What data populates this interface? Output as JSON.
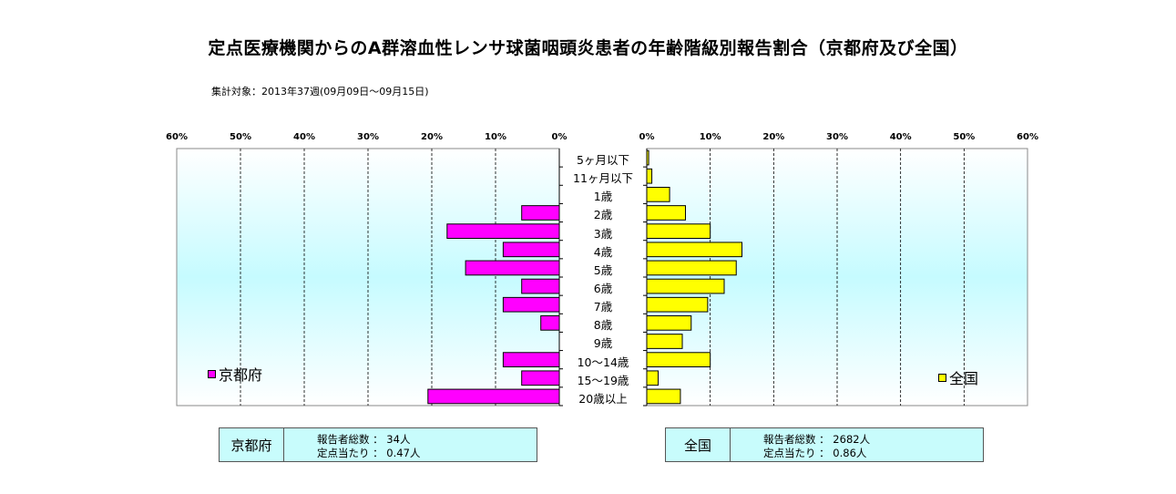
{
  "title": "定点医療機関からのA群溶血性レンサ球菌咽頭炎患者の年齢階級別報告割合（京都府及び全国）",
  "subtitle": "集計対象：2013年37週(09月09日〜09月15日)",
  "colors": {
    "kyoto": "#ff00ff",
    "national": "#ffff00",
    "grad_edge": "#ffffff",
    "grad_mid": "#c6fbff"
  },
  "chart_data": {
    "type": "bar",
    "orientation": "horizontal",
    "categories": [
      "5ヶ月以下",
      "11ヶ月以下",
      "1歳",
      "2歳",
      "3歳",
      "4歳",
      "5歳",
      "6歳",
      "7歳",
      "8歳",
      "9歳",
      "10〜14歳",
      "15〜19歳",
      "20歳以上"
    ],
    "xlim": [
      0,
      60
    ],
    "ticks": [
      "60%",
      "50%",
      "40%",
      "30%",
      "20%",
      "10%",
      "0%"
    ],
    "ticks_right": [
      "0%",
      "10%",
      "20%",
      "30%",
      "40%",
      "50%",
      "60%"
    ],
    "grid": true,
    "series": [
      {
        "name": "京都府",
        "values": [
          0,
          0,
          0,
          5.9,
          17.6,
          8.8,
          14.7,
          5.9,
          8.8,
          2.9,
          0,
          8.8,
          5.9,
          20.6
        ]
      },
      {
        "name": "全国",
        "values": [
          0.3,
          0.8,
          3.6,
          6.1,
          10.0,
          15.0,
          14.1,
          12.2,
          9.6,
          7.0,
          5.6,
          10.0,
          1.8,
          5.3
        ]
      }
    ],
    "legend": {
      "left_label": "京都府",
      "right_label": "全国"
    }
  },
  "summary": {
    "kyoto": {
      "name": "京都府",
      "line1": "報告者総数 ： 34人",
      "line2": "定点当たり ： 0.47人"
    },
    "national": {
      "name": "全国",
      "line1": "報告者総数 ： 2682人",
      "line2": "定点当たり ： 0.86人"
    }
  }
}
